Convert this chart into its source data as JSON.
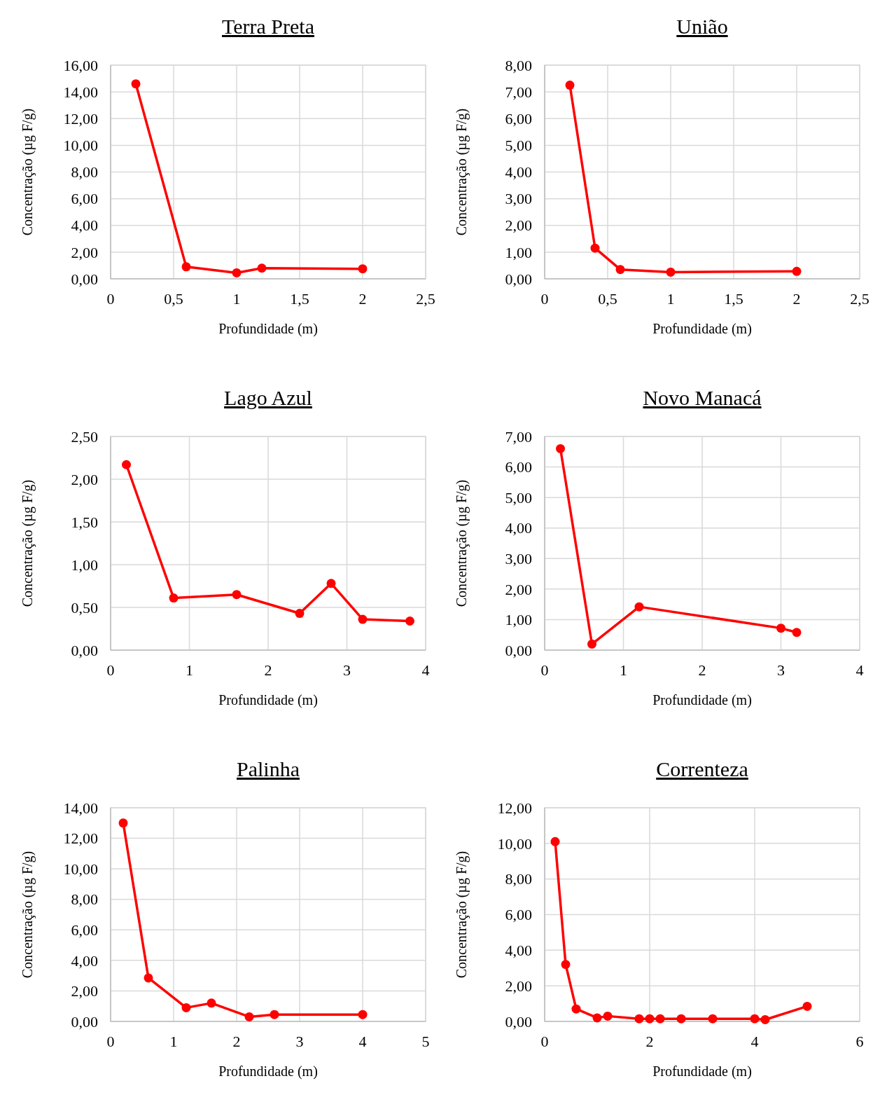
{
  "chart_data": [
    {
      "type": "line",
      "title": "Terra Preta",
      "xlabel": "Profundidade (m)",
      "ylabel": "Concentração (µg F/g)",
      "marker": "circle",
      "grid": true,
      "series": [
        {
          "color": "#ff0000",
          "x": [
            0.2,
            0.6,
            1,
            1.2,
            2
          ],
          "values": [
            14.6,
            0.9,
            0.45,
            0.8,
            0.75
          ]
        }
      ],
      "xlim": [
        0,
        2.5
      ],
      "xticks": [
        0,
        {
          "value": 0.5,
          "label": "0,5"
        },
        1,
        {
          "value": 1.5,
          "label": "1,5"
        },
        2,
        {
          "value": 2.5,
          "label": "2,5"
        }
      ],
      "ylim": [
        0,
        16
      ],
      "yticks": [
        {
          "value": 0,
          "label": "0,00"
        },
        {
          "value": 2,
          "label": "2,00"
        },
        {
          "value": 4,
          "label": "4,00"
        },
        {
          "value": 6,
          "label": "6,00"
        },
        {
          "value": 8,
          "label": "8,00"
        },
        {
          "value": 10,
          "label": "10,00"
        },
        {
          "value": 12,
          "label": "12,00"
        },
        {
          "value": 14,
          "label": "14,00"
        },
        {
          "value": 16,
          "label": "16,00"
        }
      ]
    },
    {
      "type": "line",
      "title": "União",
      "xlabel": "Profundidade (m)",
      "ylabel": "Concentração (µg F/g)",
      "marker": "circle",
      "grid": true,
      "series": [
        {
          "color": "#ff0000",
          "x": [
            0.2,
            0.4,
            0.6,
            1,
            2
          ],
          "values": [
            7.25,
            1.15,
            0.35,
            0.25,
            0.28
          ]
        }
      ],
      "xlim": [
        0,
        2.5
      ],
      "xticks": [
        0,
        {
          "value": 0.5,
          "label": "0,5"
        },
        1,
        {
          "value": 1.5,
          "label": "1,5"
        },
        2,
        {
          "value": 2.5,
          "label": "2,5"
        }
      ],
      "ylim": [
        0,
        8
      ],
      "yticks": [
        {
          "value": 0,
          "label": "0,00"
        },
        {
          "value": 1,
          "label": "1,00"
        },
        {
          "value": 2,
          "label": "2,00"
        },
        {
          "value": 3,
          "label": "3,00"
        },
        {
          "value": 4,
          "label": "4,00"
        },
        {
          "value": 5,
          "label": "5,00"
        },
        {
          "value": 6,
          "label": "6,00"
        },
        {
          "value": 7,
          "label": "7,00"
        },
        {
          "value": 8,
          "label": "8,00"
        }
      ]
    },
    {
      "type": "line",
      "title": "Lago Azul",
      "xlabel": "Profundidade (m)",
      "ylabel": "Concentração (µg F/g)",
      "marker": "circle",
      "grid": true,
      "series": [
        {
          "color": "#ff0000",
          "x": [
            0.2,
            0.8,
            1.6,
            2.4,
            2.8,
            3.2,
            3.8
          ],
          "values": [
            2.17,
            0.61,
            0.65,
            0.43,
            0.78,
            0.36,
            0.34
          ]
        }
      ],
      "xlim": [
        0,
        4
      ],
      "xticks": [
        0,
        1,
        2,
        3,
        4
      ],
      "ylim": [
        0,
        2.5
      ],
      "yticks": [
        {
          "value": 0,
          "label": "0,00"
        },
        {
          "value": 0.5,
          "label": "0,50"
        },
        {
          "value": 1,
          "label": "1,00"
        },
        {
          "value": 1.5,
          "label": "1,50"
        },
        {
          "value": 2,
          "label": "2,00"
        },
        {
          "value": 2.5,
          "label": "2,50"
        }
      ]
    },
    {
      "type": "line",
      "title": "Novo Manacá",
      "xlabel": "Profundidade (m)",
      "ylabel": "Concentração (µg F/g)",
      "marker": "circle",
      "grid": true,
      "series": [
        {
          "color": "#ff0000",
          "x": [
            0.2,
            0.6,
            1.2,
            3,
            3.2
          ],
          "values": [
            6.6,
            0.2,
            1.42,
            0.72,
            0.58
          ]
        }
      ],
      "xlim": [
        0,
        4
      ],
      "xticks": [
        0,
        1,
        2,
        3,
        4
      ],
      "ylim": [
        0,
        7
      ],
      "yticks": [
        {
          "value": 0,
          "label": "0,00"
        },
        {
          "value": 1,
          "label": "1,00"
        },
        {
          "value": 2,
          "label": "2,00"
        },
        {
          "value": 3,
          "label": "3,00"
        },
        {
          "value": 4,
          "label": "4,00"
        },
        {
          "value": 5,
          "label": "5,00"
        },
        {
          "value": 6,
          "label": "6,00"
        },
        {
          "value": 7,
          "label": "7,00"
        }
      ]
    },
    {
      "type": "line",
      "title": "Palinha",
      "xlabel": "Profundidade (m)",
      "ylabel": "Concentração (µg F/g)",
      "marker": "circle",
      "grid": true,
      "series": [
        {
          "color": "#ff0000",
          "x": [
            0.2,
            0.6,
            1.2,
            1.6,
            2.2,
            2.6,
            4
          ],
          "values": [
            13.0,
            2.85,
            0.9,
            1.2,
            0.3,
            0.45,
            0.45
          ]
        }
      ],
      "xlim": [
        0,
        5
      ],
      "xticks": [
        0,
        1,
        2,
        3,
        4,
        5
      ],
      "ylim": [
        0,
        14
      ],
      "yticks": [
        {
          "value": 0,
          "label": "0,00"
        },
        {
          "value": 2,
          "label": "2,00"
        },
        {
          "value": 4,
          "label": "4,00"
        },
        {
          "value": 6,
          "label": "6,00"
        },
        {
          "value": 8,
          "label": "8,00"
        },
        {
          "value": 10,
          "label": "10,00"
        },
        {
          "value": 12,
          "label": "12,00"
        },
        {
          "value": 14,
          "label": "14,00"
        }
      ]
    },
    {
      "type": "line",
      "title": "Correnteza",
      "xlabel": "Profundidade (m)",
      "ylabel": "Concentração (µg F/g)",
      "marker": "circle",
      "grid": true,
      "series": [
        {
          "color": "#ff0000",
          "x": [
            0.2,
            0.4,
            0.6,
            1,
            1.2,
            1.8,
            2,
            2.2,
            2.6,
            3.2,
            4,
            4.2,
            5
          ],
          "values": [
            10.1,
            3.2,
            0.7,
            0.2,
            0.3,
            0.15,
            0.15,
            0.15,
            0.15,
            0.15,
            0.15,
            0.1,
            0.85
          ]
        }
      ],
      "xlim": [
        0,
        6
      ],
      "xticks": [
        0,
        2,
        4,
        6
      ],
      "ylim": [
        0,
        12
      ],
      "yticks": [
        {
          "value": 0,
          "label": "0,00"
        },
        {
          "value": 2,
          "label": "2,00"
        },
        {
          "value": 4,
          "label": "4,00"
        },
        {
          "value": 6,
          "label": "6,00"
        },
        {
          "value": 8,
          "label": "8,00"
        },
        {
          "value": 10,
          "label": "10,00"
        },
        {
          "value": 12,
          "label": "12,00"
        }
      ]
    }
  ]
}
